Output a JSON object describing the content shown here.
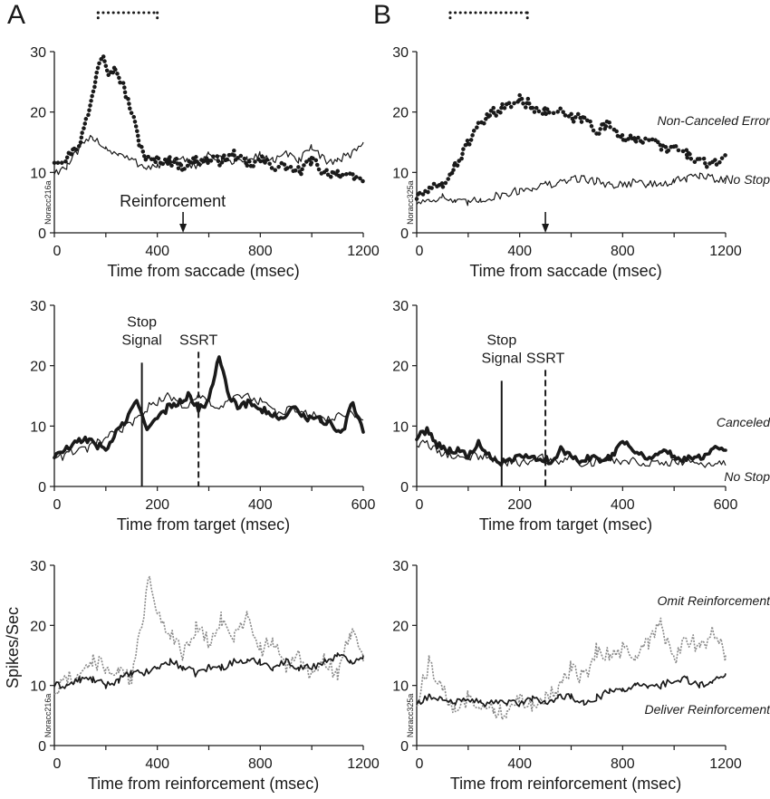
{
  "figure": {
    "panel_letters": [
      "A",
      "B"
    ],
    "y_axis_label": "Spikes/Sec"
  },
  "chart_data": [
    {
      "id": "A1",
      "type": "line",
      "xlabel": "Time from saccade (msec)",
      "xlim": [
        0,
        1200
      ],
      "ylim": [
        0,
        30
      ],
      "xticks": [
        0,
        400,
        800,
        1200
      ],
      "yticks": [
        0,
        10,
        20,
        30
      ],
      "cell_id": "Noracc216a",
      "annotation": "Reinforcement",
      "reinforcement_x": 500,
      "bracket_x": [
        170,
        400
      ],
      "series": [
        {
          "name": "",
          "style": "dotted-thick",
          "color": "#1a1a1a",
          "x": [
            0,
            50,
            100,
            140,
            170,
            190,
            210,
            240,
            270,
            300,
            330,
            360,
            400,
            450,
            500,
            550,
            600,
            650,
            700,
            750,
            800,
            850,
            900,
            950,
            1000,
            1050,
            1100,
            1150,
            1200
          ],
          "y": [
            12,
            12.5,
            15,
            21,
            28,
            30,
            27,
            27,
            24,
            20,
            15,
            12,
            12,
            12,
            11,
            12,
            12,
            12,
            13,
            11,
            12,
            11,
            11,
            10,
            12,
            10,
            10,
            9,
            9
          ]
        },
        {
          "name": "",
          "style": "thin",
          "color": "#1a1a1a",
          "x": [
            0,
            50,
            100,
            150,
            200,
            250,
            300,
            350,
            400,
            450,
            500,
            550,
            600,
            650,
            700,
            750,
            800,
            850,
            900,
            950,
            1000,
            1050,
            1100,
            1150,
            1200
          ],
          "y": [
            10,
            11,
            14,
            16,
            14,
            13,
            12,
            11,
            11,
            12,
            12,
            11,
            13,
            12,
            12,
            12,
            13,
            12,
            13,
            12,
            14,
            12,
            12,
            13,
            15
          ]
        }
      ]
    },
    {
      "id": "B1",
      "type": "line",
      "xlabel": "Time from saccade (msec)",
      "xlim": [
        0,
        1200
      ],
      "ylim": [
        0,
        30
      ],
      "xticks": [
        0,
        400,
        800,
        1200
      ],
      "yticks": [
        0,
        10,
        20,
        30
      ],
      "cell_id": "Noracc325a",
      "reinforcement_x": 500,
      "bracket_x": [
        130,
        430
      ],
      "series": [
        {
          "name": "Non-Canceled Error",
          "style": "dotted-thick",
          "color": "#1a1a1a",
          "x": [
            0,
            50,
            100,
            150,
            200,
            250,
            300,
            350,
            400,
            450,
            500,
            550,
            600,
            650,
            700,
            750,
            800,
            850,
            900,
            950,
            1000,
            1050,
            1100,
            1150,
            1200
          ],
          "y": [
            6,
            7,
            8,
            11,
            15,
            18,
            20,
            21,
            22,
            21,
            20,
            20,
            19,
            19,
            17,
            18,
            16,
            15,
            16,
            14,
            14,
            13,
            12,
            11,
            13
          ]
        },
        {
          "name": "No Stop",
          "style": "thin",
          "color": "#1a1a1a",
          "x": [
            0,
            50,
            100,
            150,
            200,
            250,
            300,
            350,
            400,
            450,
            500,
            550,
            600,
            650,
            700,
            750,
            800,
            850,
            900,
            950,
            1000,
            1050,
            1100,
            1150,
            1200
          ],
          "y": [
            5,
            5.5,
            6,
            5,
            5,
            5.5,
            6,
            6.5,
            7,
            7.5,
            8,
            8,
            9,
            9,
            8.5,
            8,
            8,
            8.5,
            8,
            8,
            8.5,
            9,
            9.5,
            9,
            9
          ]
        }
      ]
    },
    {
      "id": "A2",
      "type": "line",
      "xlabel": "Time from target (msec)",
      "xlim": [
        0,
        600
      ],
      "ylim": [
        0,
        30
      ],
      "xticks": [
        0,
        200,
        400,
        600
      ],
      "yticks": [
        0,
        10,
        20,
        30
      ],
      "stop_signal_x": 170,
      "ssrt_x": 280,
      "stop_signal_label": [
        "Stop",
        "Signal"
      ],
      "ssrt_label": "SSRT",
      "series": [
        {
          "name": "",
          "style": "thick",
          "color": "#1a1a1a",
          "x": [
            0,
            20,
            40,
            60,
            80,
            100,
            120,
            140,
            160,
            180,
            200,
            220,
            240,
            260,
            280,
            300,
            320,
            340,
            360,
            380,
            400,
            420,
            440,
            460,
            480,
            500,
            520,
            540,
            560,
            580,
            600
          ],
          "y": [
            5,
            6,
            7,
            8,
            7,
            6,
            9,
            11,
            14,
            10,
            11,
            13,
            14,
            15,
            13,
            14,
            22,
            15,
            13,
            14,
            13,
            12,
            11,
            13,
            12,
            11,
            11,
            10,
            9,
            14,
            9
          ]
        },
        {
          "name": "",
          "style": "thin",
          "color": "#1a1a1a",
          "x": [
            0,
            20,
            40,
            60,
            80,
            100,
            120,
            140,
            160,
            180,
            200,
            220,
            240,
            260,
            280,
            300,
            320,
            340,
            360,
            380,
            400,
            420,
            440,
            460,
            480,
            500,
            520,
            540,
            560,
            580,
            600
          ],
          "y": [
            5,
            5,
            6,
            6,
            7,
            8,
            9,
            10,
            11,
            13,
            14,
            15,
            14,
            13,
            15,
            14,
            13,
            14,
            15,
            15,
            14,
            13,
            12,
            13,
            12,
            12,
            11,
            11,
            12,
            12,
            11
          ]
        }
      ]
    },
    {
      "id": "B2",
      "type": "line",
      "xlabel": "Time from target (msec)",
      "xlim": [
        0,
        600
      ],
      "ylim": [
        0,
        30
      ],
      "xticks": [
        0,
        200,
        400,
        600
      ],
      "yticks": [
        0,
        10,
        20,
        30
      ],
      "stop_signal_x": 165,
      "ssrt_x": 250,
      "stop_signal_label": [
        "Stop",
        "Signal"
      ],
      "ssrt_label": "SSRT",
      "series": [
        {
          "name": "Canceled",
          "style": "thick",
          "color": "#1a1a1a",
          "x": [
            0,
            20,
            40,
            60,
            80,
            100,
            120,
            140,
            160,
            180,
            200,
            220,
            240,
            260,
            280,
            300,
            320,
            340,
            360,
            380,
            400,
            420,
            440,
            460,
            480,
            500,
            520,
            540,
            560,
            580,
            600
          ],
          "y": [
            8,
            9.5,
            7,
            6,
            6,
            5,
            7,
            5,
            4,
            4,
            5,
            4.5,
            5,
            4,
            6,
            5,
            4,
            5,
            4.5,
            5,
            8,
            6,
            5,
            5,
            6,
            5,
            4.5,
            5,
            5,
            7,
            6
          ]
        },
        {
          "name": "No Stop",
          "style": "thin",
          "color": "#1a1a1a",
          "x": [
            0,
            20,
            40,
            60,
            80,
            100,
            120,
            140,
            160,
            180,
            200,
            220,
            240,
            260,
            280,
            300,
            320,
            340,
            360,
            380,
            400,
            420,
            440,
            460,
            480,
            500,
            520,
            540,
            560,
            580,
            600
          ],
          "y": [
            7,
            7,
            6,
            5,
            5,
            5,
            5,
            5,
            4,
            4,
            4,
            4,
            5,
            4,
            4,
            5,
            4,
            4,
            4.5,
            4.5,
            4,
            4.5,
            4,
            4,
            4,
            4,
            4,
            4,
            3.5,
            4,
            3.5
          ]
        }
      ]
    },
    {
      "id": "A3",
      "type": "line",
      "xlabel": "Time from reinforcement (msec)",
      "xlim": [
        0,
        1200
      ],
      "ylim": [
        0,
        30
      ],
      "xticks": [
        0,
        400,
        800,
        1200
      ],
      "yticks": [
        0,
        10,
        20,
        30
      ],
      "cell_id": "Noracc216a",
      "series": [
        {
          "name": "",
          "style": "dotted-gray",
          "color": "#8a8a8a",
          "x": [
            0,
            50,
            100,
            150,
            200,
            250,
            300,
            340,
            370,
            400,
            450,
            500,
            550,
            600,
            650,
            700,
            750,
            800,
            850,
            900,
            950,
            1000,
            1050,
            1100,
            1150,
            1200
          ],
          "y": [
            9,
            11,
            12,
            14,
            13,
            12,
            11,
            20,
            29,
            22,
            19,
            15,
            20,
            17,
            21,
            18,
            22,
            16,
            17,
            13,
            16,
            11,
            14,
            12,
            19,
            14
          ]
        },
        {
          "name": "",
          "style": "thin-dark",
          "color": "#1a1a1a",
          "x": [
            0,
            50,
            100,
            150,
            200,
            250,
            300,
            350,
            400,
            450,
            500,
            550,
            600,
            650,
            700,
            750,
            800,
            850,
            900,
            950,
            1000,
            1050,
            1100,
            1150,
            1200
          ],
          "y": [
            10,
            10,
            11,
            11,
            10,
            11,
            12,
            12,
            13,
            14,
            13,
            12,
            13,
            13,
            14,
            14,
            14,
            13,
            14,
            13,
            13,
            14,
            15,
            14,
            15
          ]
        }
      ]
    },
    {
      "id": "B3",
      "type": "line",
      "xlabel": "Time from reinforcement (msec)",
      "xlim": [
        0,
        1200
      ],
      "ylim": [
        0,
        30
      ],
      "xticks": [
        0,
        400,
        800,
        1200
      ],
      "yticks": [
        0,
        10,
        20,
        30
      ],
      "cell_id": "Noracc325a",
      "series": [
        {
          "name": "Omit Reinforcement",
          "style": "dotted-gray",
          "color": "#8a8a8a",
          "x": [
            0,
            50,
            100,
            150,
            200,
            250,
            300,
            350,
            400,
            450,
            500,
            550,
            600,
            650,
            700,
            750,
            800,
            850,
            900,
            950,
            1000,
            1050,
            1100,
            1150,
            1200
          ],
          "y": [
            7,
            14,
            9,
            6,
            8,
            7,
            6,
            5,
            8,
            7,
            8,
            9,
            13,
            11,
            16,
            15,
            16,
            15,
            17,
            20,
            14,
            18,
            16,
            19,
            15
          ]
        },
        {
          "name": "Deliver Reinforcement",
          "style": "thin-dark",
          "color": "#1a1a1a",
          "x": [
            0,
            50,
            100,
            150,
            200,
            250,
            300,
            350,
            400,
            450,
            500,
            550,
            600,
            650,
            700,
            750,
            800,
            850,
            900,
            950,
            1000,
            1050,
            1100,
            1150,
            1200
          ],
          "y": [
            7,
            8,
            8,
            7,
            8,
            7,
            7,
            7,
            7,
            8,
            7,
            8,
            8,
            7,
            8,
            9,
            9,
            10,
            10,
            10,
            11,
            11,
            10,
            11,
            12
          ]
        }
      ]
    }
  ]
}
